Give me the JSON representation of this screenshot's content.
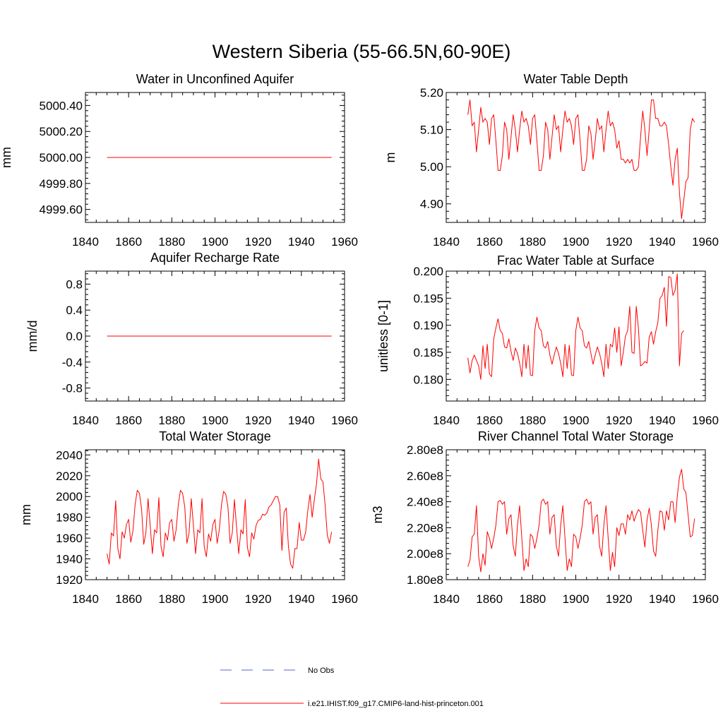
{
  "figure": {
    "title": "Western Siberia (55-66.5N,60-90E)",
    "line_color": "#ff0000",
    "obs_color": "#5566cc"
  },
  "legend": {
    "obs_label": "No Obs",
    "model_label": "i.e21.IHIST.f09_g17.CMIP6-land-hist-princeton.001"
  },
  "chart_data": [
    {
      "type": "line",
      "title": "Water in Unconfined Aquifer",
      "xlabel": "",
      "ylabel": "mm",
      "xlim": [
        1840,
        1960
      ],
      "xticks": [
        1840,
        1860,
        1880,
        1900,
        1920,
        1940,
        1960
      ],
      "ylim": [
        4999.5,
        5000.5
      ],
      "yticks": [
        4999.6,
        4999.8,
        5000.0,
        5000.2,
        5000.4
      ],
      "ytick_labels": [
        "4999.60",
        "4999.80",
        "5000.00",
        "5000.20",
        "5000.40"
      ],
      "x_start": 1850,
      "series": [
        {
          "values": [
            5000,
            5000,
            5000,
            5000,
            5000,
            5000,
            5000,
            5000,
            5000,
            5000,
            5000,
            5000,
            5000,
            5000,
            5000,
            5000,
            5000,
            5000,
            5000,
            5000,
            5000,
            5000,
            5000,
            5000,
            5000,
            5000,
            5000,
            5000,
            5000,
            5000,
            5000,
            5000,
            5000,
            5000,
            5000,
            5000,
            5000,
            5000,
            5000,
            5000,
            5000,
            5000,
            5000,
            5000,
            5000,
            5000,
            5000,
            5000,
            5000,
            5000,
            5000,
            5000,
            5000,
            5000,
            5000,
            5000,
            5000,
            5000,
            5000,
            5000,
            5000,
            5000,
            5000,
            5000,
            5000,
            5000,
            5000,
            5000,
            5000,
            5000,
            5000,
            5000,
            5000,
            5000,
            5000,
            5000,
            5000,
            5000,
            5000,
            5000,
            5000,
            5000,
            5000,
            5000,
            5000,
            5000,
            5000,
            5000,
            5000,
            5000,
            5000,
            5000,
            5000,
            5000,
            5000,
            5000,
            5000,
            5000,
            5000,
            5000,
            5000,
            5000,
            5000,
            5000,
            5000
          ]
        }
      ]
    },
    {
      "type": "line",
      "title": "Water Table Depth",
      "xlabel": "",
      "ylabel": "m",
      "xlim": [
        1840,
        1960
      ],
      "xticks": [
        1840,
        1860,
        1880,
        1900,
        1920,
        1940,
        1960
      ],
      "ylim": [
        4.85,
        5.2
      ],
      "yticks": [
        4.9,
        5.0,
        5.1,
        5.2
      ],
      "ytick_labels": [
        "4.90",
        "5.00",
        "5.10",
        "5.20"
      ],
      "x_start": 1850,
      "series": [
        {
          "values": [
            5.14,
            5.18,
            5.11,
            5.12,
            5.04,
            5.1,
            5.16,
            5.12,
            5.13,
            5.12,
            5.06,
            5.13,
            5.14,
            5.07,
            4.99,
            4.99,
            5.03,
            5.12,
            5.1,
            5.02,
            5.08,
            5.14,
            5.1,
            5.04,
            5.1,
            5.15,
            5.12,
            5.13,
            5.11,
            5.06,
            5.13,
            5.14,
            5.07,
            4.99,
            4.99,
            5.03,
            5.12,
            5.1,
            5.02,
            5.08,
            5.14,
            5.1,
            5.11,
            5.04,
            5.1,
            5.15,
            5.12,
            5.13,
            5.11,
            5.06,
            5.13,
            5.14,
            5.07,
            4.99,
            4.99,
            5.02,
            5.11,
            5.09,
            5.02,
            5.07,
            5.13,
            5.1,
            5.11,
            5.04,
            5.1,
            5.15,
            5.11,
            5.12,
            5.1,
            5.05,
            5.07,
            5.02,
            5.02,
            5.01,
            5.02,
            5.01,
            5.02,
            4.99,
            4.99,
            5.0,
            5.08,
            5.15,
            5.1,
            5.03,
            5.1,
            5.18,
            5.18,
            5.13,
            5.13,
            5.11,
            5.11,
            5.12,
            5.11,
            5.06,
            5.0,
            4.95,
            5.02,
            5.05,
            4.93,
            4.86,
            4.91,
            4.96,
            4.97,
            5.1,
            5.13,
            5.12
          ]
        }
      ]
    },
    {
      "type": "line",
      "title": "Aquifer Recharge Rate",
      "xlabel": "",
      "ylabel": "mm/d",
      "xlim": [
        1840,
        1960
      ],
      "xticks": [
        1840,
        1860,
        1880,
        1900,
        1920,
        1940,
        1960
      ],
      "ylim": [
        -1.0,
        1.0
      ],
      "yticks": [
        -0.8,
        -0.4,
        0.0,
        0.4,
        0.8
      ],
      "ytick_labels": [
        "-0.8",
        "-0.4",
        "0.0",
        "0.4",
        "0.8"
      ],
      "x_start": 1850,
      "series": [
        {
          "values": [
            0,
            0,
            0,
            0,
            0,
            0,
            0,
            0,
            0,
            0,
            0,
            0,
            0,
            0,
            0,
            0,
            0,
            0,
            0,
            0,
            0,
            0,
            0,
            0,
            0,
            0,
            0,
            0,
            0,
            0,
            0,
            0,
            0,
            0,
            0,
            0,
            0,
            0,
            0,
            0,
            0,
            0,
            0,
            0,
            0,
            0,
            0,
            0,
            0,
            0,
            0,
            0,
            0,
            0,
            0,
            0,
            0,
            0,
            0,
            0,
            0,
            0,
            0,
            0,
            0,
            0,
            0,
            0,
            0,
            0,
            0,
            0,
            0,
            0,
            0,
            0,
            0,
            0,
            0,
            0,
            0,
            0,
            0,
            0,
            0,
            0,
            0,
            0,
            0,
            0,
            0,
            0,
            0,
            0,
            0,
            0,
            0,
            0,
            0,
            0,
            0,
            0,
            0,
            0,
            0
          ]
        }
      ]
    },
    {
      "type": "line",
      "title": "Frac Water Table at Surface",
      "xlabel": "",
      "ylabel": "unitless [0-1]",
      "xlim": [
        1840,
        1960
      ],
      "xticks": [
        1840,
        1860,
        1880,
        1900,
        1920,
        1940,
        1960
      ],
      "ylim": [
        0.176,
        0.2
      ],
      "yticks": [
        0.18,
        0.185,
        0.19,
        0.195,
        0.2
      ],
      "ytick_labels": [
        "0.180",
        "0.185",
        "0.190",
        "0.195",
        "0.200"
      ],
      "x_start": 1850,
      "series": [
        {
          "values": [
            0.184,
            0.1812,
            0.1835,
            0.1845,
            0.1835,
            0.1825,
            0.18,
            0.1862,
            0.182,
            0.1865,
            0.181,
            0.1805,
            0.1875,
            0.1895,
            0.1912,
            0.189,
            0.1885,
            0.186,
            0.1858,
            0.1875,
            0.1852,
            0.1835,
            0.1858,
            0.1848,
            0.183,
            0.1805,
            0.1865,
            0.182,
            0.1863,
            0.1808,
            0.1807,
            0.189,
            0.1915,
            0.1895,
            0.189,
            0.1862,
            0.1858,
            0.187,
            0.1845,
            0.1828,
            0.1845,
            0.186,
            0.1848,
            0.183,
            0.1805,
            0.1865,
            0.182,
            0.1863,
            0.1808,
            0.1807,
            0.189,
            0.1915,
            0.1895,
            0.189,
            0.1862,
            0.1858,
            0.187,
            0.1848,
            0.1828,
            0.1845,
            0.186,
            0.1848,
            0.183,
            0.1805,
            0.1865,
            0.182,
            0.1865,
            0.186,
            0.1895,
            0.185,
            0.1897,
            0.1825,
            0.185,
            0.188,
            0.189,
            0.1935,
            0.185,
            0.1848,
            0.1935,
            0.1895,
            0.1825,
            0.1828,
            0.1833,
            0.183,
            0.1878,
            0.1888,
            0.1865,
            0.1888,
            0.1905,
            0.195,
            0.1955,
            0.197,
            0.1898,
            0.199,
            0.1988,
            0.1955,
            0.1965,
            0.1995,
            0.1825,
            0.1885,
            0.189
          ]
        }
      ]
    },
    {
      "type": "line",
      "title": "Total Water Storage",
      "xlabel": "",
      "ylabel": "mm",
      "xlim": [
        1840,
        1960
      ],
      "xticks": [
        1840,
        1860,
        1880,
        1900,
        1920,
        1940,
        1960
      ],
      "ylim": [
        1920,
        2045
      ],
      "yticks": [
        1920,
        1940,
        1960,
        1980,
        2000,
        2020,
        2040
      ],
      "ytick_labels": [
        "1920",
        "1940",
        "1960",
        "1980",
        "2000",
        "2020",
        "2040"
      ],
      "x_start": 1850,
      "series": [
        {
          "values": [
            1945,
            1935,
            1965,
            1962,
            1996,
            1950,
            1940,
            1966,
            1960,
            1973,
            1978,
            1956,
            1967,
            1992,
            2006,
            2003,
            1988,
            1954,
            1965,
            1998,
            1972,
            1945,
            1968,
            1965,
            1999,
            1952,
            1942,
            1965,
            1958,
            1975,
            1978,
            1957,
            1968,
            1992,
            2006,
            2003,
            1990,
            1955,
            1965,
            1998,
            1972,
            1945,
            1968,
            1965,
            1998,
            1952,
            1942,
            1964,
            1957,
            1973,
            1978,
            1955,
            1968,
            1992,
            2005,
            2002,
            1990,
            1955,
            1965,
            1997,
            1970,
            1945,
            1968,
            1964,
            1997,
            1951,
            1942,
            1965,
            1959,
            1972,
            1977,
            1978,
            1983,
            1982,
            1984,
            1990,
            1992,
            1996,
            2000,
            2000,
            1992,
            1948,
            1985,
            1989,
            1952,
            1935,
            1931,
            1950,
            1950,
            1975,
            1958,
            1958,
            1966,
            1987,
            2002,
            1980,
            1997,
            2012,
            2036,
            2017,
            2014,
            1992,
            1963,
            1955,
            1966
          ]
        }
      ]
    },
    {
      "type": "line",
      "title": "River Channel Total Water Storage",
      "xlabel": "",
      "ylabel": "m3",
      "xlim": [
        1840,
        1960
      ],
      "xticks": [
        1840,
        1860,
        1880,
        1900,
        1920,
        1940,
        1960
      ],
      "ylim": [
        180000000,
        280000000
      ],
      "yticks": [
        180000000,
        200000000,
        220000000,
        240000000,
        260000000,
        280000000
      ],
      "ytick_labels": [
        "1.80e8",
        "2.00e8",
        "2.20e8",
        "2.40e8",
        "2.60e8",
        "2.80e8"
      ],
      "x_start": 1850,
      "series": [
        {
          "values": [
            190000000.0,
            195000000.0,
            213000000.0,
            215000000.0,
            237000000.0,
            198000000.0,
            186000000.0,
            200000000.0,
            191000000.0,
            217000000.0,
            212000000.0,
            204000000.0,
            212000000.0,
            222000000.0,
            240000000.0,
            241000000.0,
            238000000.0,
            240000000.0,
            215000000.0,
            227000000.0,
            230000000.0,
            206000000.0,
            198000000.0,
            222000000.0,
            237000000.0,
            212000000.0,
            187000000.0,
            196000000.0,
            190000000.0,
            215000000.0,
            213000000.0,
            204000000.0,
            212000000.0,
            222000000.0,
            240000000.0,
            242000000.0,
            238000000.0,
            240000000.0,
            215000000.0,
            228000000.0,
            230000000.0,
            206000000.0,
            198000000.0,
            222000000.0,
            237000000.0,
            212000000.0,
            187000000.0,
            196000000.0,
            190000000.0,
            215000000.0,
            213000000.0,
            204000000.0,
            212000000.0,
            222000000.0,
            240000000.0,
            242000000.0,
            238000000.0,
            240000000.0,
            215000000.0,
            228000000.0,
            230000000.0,
            206000000.0,
            198000000.0,
            222000000.0,
            237000000.0,
            212000000.0,
            187000000.0,
            201000000.0,
            190000000.0,
            220000000.0,
            214000000.0,
            223000000.0,
            223000000.0,
            215000000.0,
            230000000.0,
            226000000.0,
            233000000.0,
            225000000.0,
            230000000.0,
            234000000.0,
            232000000.0,
            218000000.0,
            205000000.0,
            226000000.0,
            235000000.0,
            222000000.0,
            202000000.0,
            198000000.0,
            218000000.0,
            233000000.0,
            232000000.0,
            218000000.0,
            233000000.0,
            226000000.0,
            240000000.0,
            240000000.0,
            224000000.0,
            244000000.0,
            259000000.0,
            265000000.0,
            250000000.0,
            247000000.0,
            230000000.0,
            213000000.0,
            214000000.0,
            227000000.0
          ]
        }
      ]
    }
  ]
}
